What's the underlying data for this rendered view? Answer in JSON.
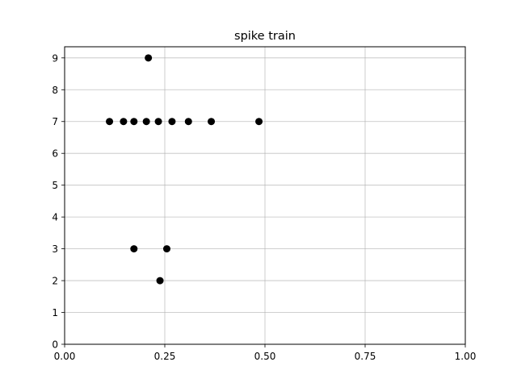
{
  "chart_data": {
    "type": "scatter",
    "title": "spike train",
    "xlabel": "",
    "ylabel": "",
    "xlim": [
      0,
      1
    ],
    "ylim": [
      0,
      9.35
    ],
    "x_ticks": [
      {
        "value": 0,
        "label": "0.00"
      },
      {
        "value": 0.25,
        "label": "0.25"
      },
      {
        "value": 0.5,
        "label": "0.50"
      },
      {
        "value": 0.75,
        "label": "0.75"
      },
      {
        "value": 1,
        "label": "1.00"
      }
    ],
    "y_ticks": [
      {
        "value": 0,
        "label": "0"
      },
      {
        "value": 1,
        "label": "1"
      },
      {
        "value": 2,
        "label": "2"
      },
      {
        "value": 3,
        "label": "3"
      },
      {
        "value": 4,
        "label": "4"
      },
      {
        "value": 5,
        "label": "5"
      },
      {
        "value": 6,
        "label": "6"
      },
      {
        "value": 7,
        "label": "7"
      },
      {
        "value": 8,
        "label": "8"
      },
      {
        "value": 9,
        "label": "9"
      }
    ],
    "grid": true,
    "marker_color": "#000000",
    "grid_color": "#b0b0b0",
    "points": [
      {
        "x": 0.209,
        "y": 9
      },
      {
        "x": 0.112,
        "y": 7
      },
      {
        "x": 0.147,
        "y": 7
      },
      {
        "x": 0.173,
        "y": 7
      },
      {
        "x": 0.204,
        "y": 7
      },
      {
        "x": 0.234,
        "y": 7
      },
      {
        "x": 0.268,
        "y": 7
      },
      {
        "x": 0.309,
        "y": 7
      },
      {
        "x": 0.366,
        "y": 7
      },
      {
        "x": 0.485,
        "y": 7
      },
      {
        "x": 0.173,
        "y": 3
      },
      {
        "x": 0.255,
        "y": 3
      },
      {
        "x": 0.238,
        "y": 2
      }
    ]
  }
}
